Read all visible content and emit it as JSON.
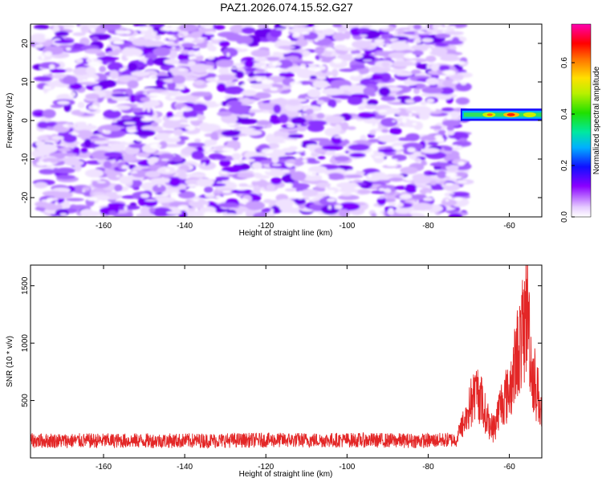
{
  "title": "PAZ1.2026.074.15.52.G27",
  "chart_data": [
    {
      "type": "heatmap",
      "name": "spectrogram",
      "xlabel": "Height of straight line (km)",
      "ylabel": "Frequency (Hz)",
      "xlim": [
        -178,
        -52
      ],
      "ylim": [
        -25,
        25
      ],
      "xticks": [
        -160,
        -140,
        -120,
        -100,
        -80,
        -60
      ],
      "yticks": [
        -20,
        -10,
        0,
        10,
        20
      ],
      "noise_region_x": [
        -176,
        -71
      ],
      "signal_band": {
        "x_start": -72,
        "x_end": -52,
        "freq_center": 1.5,
        "freq_halfwidth": 1.6,
        "peak_amplitude": 0.78
      },
      "colorbar": {
        "label": "Normalized spectral amplitude",
        "range": [
          0.0,
          0.75
        ],
        "ticks": [
          0.0,
          0.2,
          0.4,
          0.6
        ]
      },
      "colors": {
        "low": "#e6d0ff",
        "mid": "#7b00ff",
        "high": "#ff0000"
      }
    },
    {
      "type": "line",
      "name": "snr",
      "xlabel": "Height of straight line (km)",
      "ylabel": "SNR (10 * v/v)",
      "xlim": [
        -178,
        -52
      ],
      "ylim": [
        0,
        1680
      ],
      "xticks": [
        -160,
        -140,
        -120,
        -100,
        -80,
        -60
      ],
      "yticks": [
        500,
        1000,
        1500
      ],
      "line_color": "#e32626",
      "series": [
        {
          "name": "SNR",
          "x": [
            -178,
            -160,
            -140,
            -120,
            -100,
            -80,
            -73,
            -71,
            -69,
            -67.5,
            -66,
            -64,
            -62,
            -60,
            -58,
            -56.5,
            -55.5,
            -54.5,
            -53,
            -52
          ],
          "values": [
            150,
            150,
            150,
            155,
            155,
            150,
            160,
            400,
            640,
            700,
            460,
            300,
            580,
            700,
            1100,
            1330,
            1650,
            920,
            700,
            450
          ]
        }
      ]
    }
  ]
}
